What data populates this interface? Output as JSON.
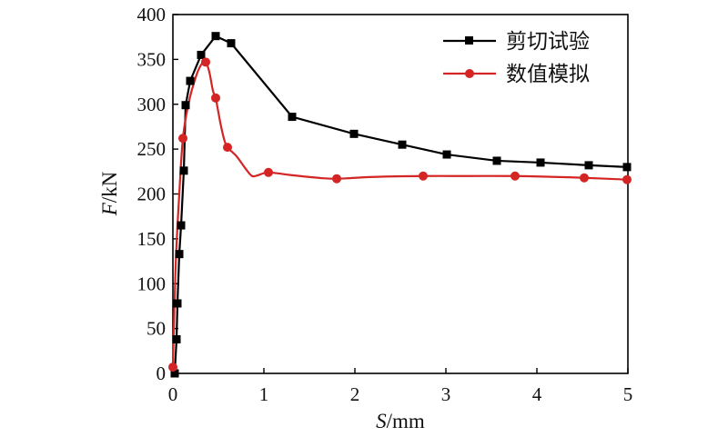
{
  "chart_data": {
    "type": "line",
    "xlabel": {
      "var": "S",
      "unit": "/mm"
    },
    "ylabel": {
      "var": "F",
      "unit": "/kN"
    },
    "xlim": [
      0,
      5
    ],
    "ylim": [
      0,
      400
    ],
    "xticks": [
      "0",
      "1",
      "2",
      "3",
      "4",
      "5"
    ],
    "yticks": [
      "0",
      "50",
      "100",
      "150",
      "200",
      "250",
      "300",
      "350",
      "400"
    ],
    "grid": false,
    "legend_position": "top-right",
    "series": [
      {
        "name": "剪切试验",
        "color": "#000000",
        "marker": "square",
        "points": [
          [
            0.02,
            0
          ],
          [
            0.04,
            38
          ],
          [
            0.05,
            78
          ],
          [
            0.07,
            133
          ],
          [
            0.09,
            165
          ],
          [
            0.12,
            226
          ],
          [
            0.14,
            299
          ],
          [
            0.19,
            326
          ],
          [
            0.31,
            355
          ],
          [
            0.47,
            376
          ],
          [
            0.64,
            368
          ],
          [
            1.31,
            286
          ],
          [
            1.99,
            267
          ],
          [
            2.52,
            255
          ],
          [
            3.01,
            244
          ],
          [
            3.56,
            237
          ],
          [
            4.04,
            235
          ],
          [
            4.57,
            232
          ],
          [
            4.99,
            230
          ]
        ]
      },
      {
        "name": "数值模拟",
        "color": "#d42424",
        "marker": "circle",
        "markers": [
          [
            0.0,
            7
          ],
          [
            0.11,
            262
          ],
          [
            0.36,
            347
          ],
          [
            0.47,
            307
          ],
          [
            0.6,
            252
          ],
          [
            1.05,
            224
          ],
          [
            1.8,
            217
          ],
          [
            2.75,
            220
          ],
          [
            3.76,
            220
          ],
          [
            4.52,
            218
          ],
          [
            4.99,
            216
          ]
        ],
        "curve": [
          [
            0.0,
            7
          ],
          [
            0.03,
            120
          ],
          [
            0.07,
            200
          ],
          [
            0.11,
            262
          ],
          [
            0.17,
            300
          ],
          [
            0.25,
            330
          ],
          [
            0.31,
            344
          ],
          [
            0.36,
            347
          ],
          [
            0.4,
            336
          ],
          [
            0.44,
            315
          ],
          [
            0.47,
            307
          ],
          [
            0.52,
            280
          ],
          [
            0.56,
            262
          ],
          [
            0.6,
            252
          ],
          [
            0.7,
            242
          ],
          [
            0.8,
            228
          ],
          [
            0.87,
            220
          ],
          [
            0.94,
            221
          ],
          [
            1.05,
            224
          ],
          [
            1.3,
            221
          ],
          [
            1.6,
            218
          ],
          [
            1.8,
            217
          ],
          [
            2.2,
            219
          ],
          [
            2.75,
            220
          ],
          [
            3.25,
            220
          ],
          [
            3.76,
            220
          ],
          [
            4.2,
            219
          ],
          [
            4.52,
            218
          ],
          [
            4.99,
            216
          ]
        ]
      }
    ]
  }
}
